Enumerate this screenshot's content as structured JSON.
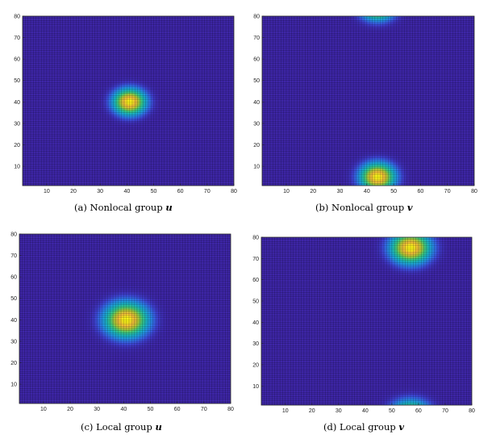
{
  "figure": {
    "panels": [
      {
        "caption": {
          "prefix": "(a)",
          "text": "Nonlocal group",
          "variable": "u"
        },
        "chart_data": {
          "type": "heatmap",
          "title": "",
          "xlabel": "",
          "ylabel": "",
          "xlim": [
            1,
            80
          ],
          "ylim": [
            1,
            80
          ],
          "x_ticks": [
            "10",
            "20",
            "30",
            "40",
            "50",
            "60",
            "70",
            "80"
          ],
          "y_ticks": [
            "10",
            "20",
            "30",
            "40",
            "50",
            "60",
            "70",
            "80"
          ],
          "colormap": "parula",
          "grid": true,
          "peaks": [
            {
              "x": 41,
              "y": 40,
              "sigma": 4.5
            }
          ]
        }
      },
      {
        "caption": {
          "prefix": "(b)",
          "text": "Nonlocal group",
          "variable": "v"
        },
        "chart_data": {
          "type": "heatmap",
          "title": "",
          "xlabel": "",
          "ylabel": "",
          "xlim": [
            1,
            80
          ],
          "ylim": [
            1,
            80
          ],
          "x_ticks": [
            "10",
            "20",
            "30",
            "40",
            "50",
            "60",
            "70",
            "80"
          ],
          "y_ticks": [
            "10",
            "20",
            "30",
            "40",
            "50",
            "60",
            "70",
            "80"
          ],
          "colormap": "parula",
          "grid": true,
          "peaks": [
            {
              "x": 44,
              "y": 5,
              "sigma": 4.8
            },
            {
              "x": 44,
              "y": 85,
              "sigma": 4.8
            }
          ]
        }
      },
      {
        "caption": {
          "prefix": "(c)",
          "text": "Local group",
          "variable": "u"
        },
        "chart_data": {
          "type": "heatmap",
          "title": "",
          "xlabel": "",
          "ylabel": "",
          "xlim": [
            1,
            80
          ],
          "ylim": [
            1,
            80
          ],
          "x_ticks": [
            "10",
            "20",
            "30",
            "40",
            "50",
            "60",
            "70",
            "80"
          ],
          "y_ticks": [
            "10",
            "20",
            "30",
            "40",
            "50",
            "60",
            "70",
            "80"
          ],
          "colormap": "parula",
          "grid": true,
          "peaks": [
            {
              "x": 41,
              "y": 40,
              "sigma": 6
            }
          ]
        }
      },
      {
        "caption": {
          "prefix": "(d)",
          "text": "Local group",
          "variable": "v"
        },
        "chart_data": {
          "type": "heatmap",
          "title": "",
          "xlabel": "",
          "ylabel": "",
          "xlim": [
            1,
            80
          ],
          "ylim": [
            1,
            80
          ],
          "x_ticks": [
            "10",
            "20",
            "30",
            "40",
            "50",
            "60",
            "70",
            "80"
          ],
          "y_ticks": [
            "10",
            "20",
            "30",
            "40",
            "50",
            "60",
            "70",
            "80"
          ],
          "colormap": "parula",
          "grid": true,
          "peaks": [
            {
              "x": 57,
              "y": 75,
              "sigma": 5.5
            },
            {
              "x": 57,
              "y": -5,
              "sigma": 5.5
            }
          ]
        }
      }
    ]
  }
}
